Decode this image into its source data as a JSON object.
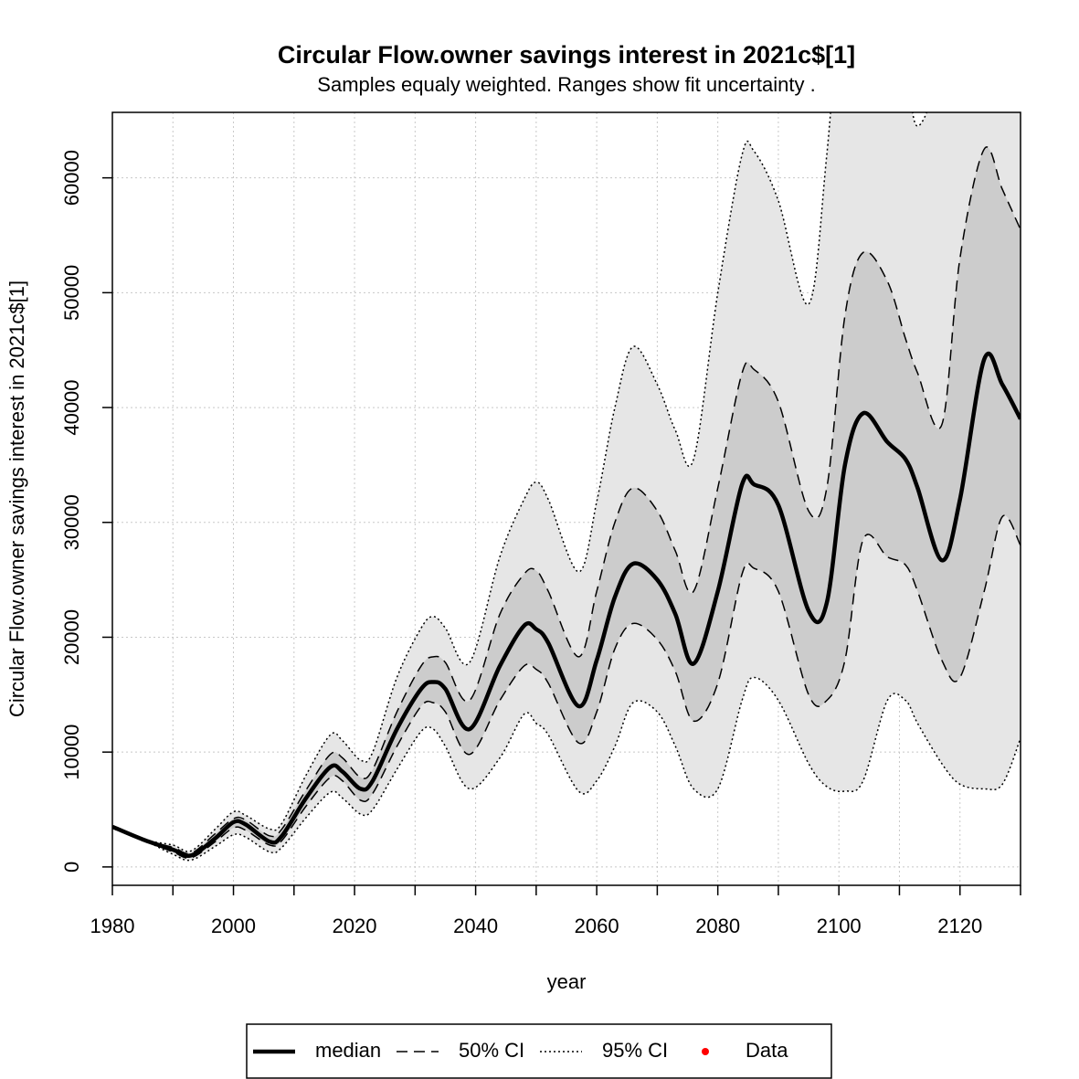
{
  "chart_data": {
    "type": "line",
    "title": "Circular Flow.owner savings interest in 2021c$[1]",
    "subtitle": "Samples equaly weighted. Ranges show  fit uncertainty .",
    "x_label": "year",
    "y_label": "Circular Flow.owner savings interest in 2021c$[1]",
    "x": [
      1980,
      1985,
      1990,
      1993,
      1997,
      2000,
      2002,
      2006,
      2008,
      2012,
      2016,
      2018,
      2021,
      2023,
      2027,
      2031,
      2033,
      2035,
      2039,
      2044,
      2048,
      2050,
      2052,
      2057,
      2060,
      2063,
      2066,
      2070,
      2073,
      2076,
      2080,
      2084,
      2086,
      2090,
      2095,
      2098,
      2101,
      2104,
      2108,
      2111,
      2113,
      2117,
      2120,
      2124,
      2127,
      2130
    ],
    "series": [
      {
        "name": "median",
        "color": "#000000",
        "style": "solid",
        "values": [
          3500,
          2400,
          1500,
          1000,
          2500,
          3900,
          3700,
          2200,
          2700,
          6000,
          8700,
          8300,
          6800,
          7500,
          12000,
          15500,
          16100,
          15500,
          12000,
          17500,
          21000,
          20700,
          19500,
          14000,
          18000,
          23500,
          26400,
          25000,
          22000,
          17700,
          24000,
          33300,
          33300,
          31500,
          22300,
          23000,
          35000,
          39500,
          37000,
          35500,
          33000,
          26700,
          32000,
          44200,
          42000,
          39000
        ]
      },
      {
        "name": "50% CI",
        "color": "#cccccc",
        "style": "dashed",
        "lower": [
          3500,
          2400,
          1300,
          800,
          2200,
          3400,
          3200,
          1900,
          2300,
          5300,
          7800,
          7500,
          5800,
          6400,
          10500,
          14000,
          14300,
          13500,
          9800,
          14500,
          17500,
          17200,
          16000,
          10800,
          13500,
          19000,
          21200,
          19800,
          17000,
          12700,
          16000,
          25500,
          26000,
          24000,
          15000,
          14500,
          18000,
          28500,
          27000,
          26300,
          24000,
          18000,
          16500,
          24000,
          30500,
          28000
        ],
        "upper": [
          3500,
          2400,
          1700,
          1200,
          2900,
          4200,
          4100,
          2700,
          3300,
          6700,
          9800,
          9500,
          7800,
          8500,
          13500,
          17500,
          18300,
          17800,
          14500,
          22000,
          25500,
          25800,
          24000,
          18300,
          24000,
          30000,
          33000,
          31000,
          27500,
          24000,
          33000,
          43000,
          43300,
          40500,
          31000,
          33000,
          48000,
          53500,
          51000,
          46000,
          43000,
          38500,
          53000,
          62500,
          59000,
          55500
        ]
      },
      {
        "name": "95% CI",
        "color": "#e6e6e6",
        "style": "dotted",
        "lower": [
          3500,
          2400,
          1100,
          600,
          1800,
          2800,
          2600,
          1300,
          1700,
          4300,
          6500,
          6000,
          4600,
          5000,
          8500,
          11800,
          12000,
          10500,
          6800,
          9500,
          13300,
          12500,
          11500,
          6600,
          7500,
          10500,
          14300,
          13500,
          10500,
          6800,
          6800,
          14500,
          16500,
          14500,
          9000,
          7000,
          6600,
          7500,
          14500,
          14500,
          12500,
          9000,
          7200,
          6800,
          7200,
          11200
        ],
        "upper": [
          3500,
          2400,
          1900,
          1400,
          3300,
          4800,
          4500,
          3300,
          3800,
          8000,
          11500,
          11000,
          9300,
          10000,
          16500,
          20800,
          21800,
          20800,
          17800,
          27000,
          32000,
          33500,
          32000,
          25700,
          31800,
          40000,
          45300,
          42000,
          38000,
          35500,
          50000,
          62000,
          62300,
          58000,
          49000,
          62000,
          80000,
          80000,
          75000,
          70000,
          64500,
          70000,
          80000,
          80000,
          80000,
          80000
        ]
      },
      {
        "name": "Data",
        "color": "#ff0000",
        "style": "points"
      }
    ],
    "xlim": [
      1980,
      2130
    ],
    "ylim": [
      -1600,
      65700
    ],
    "xticks": [
      1980,
      2000,
      2020,
      2040,
      2060,
      2080,
      2100,
      2120
    ],
    "x_minor_ticks": [
      1990,
      2010,
      2030,
      2050,
      2070,
      2090,
      2110,
      2130
    ],
    "yticks": [
      0,
      10000,
      20000,
      30000,
      40000,
      50000,
      60000
    ],
    "grid": true
  }
}
